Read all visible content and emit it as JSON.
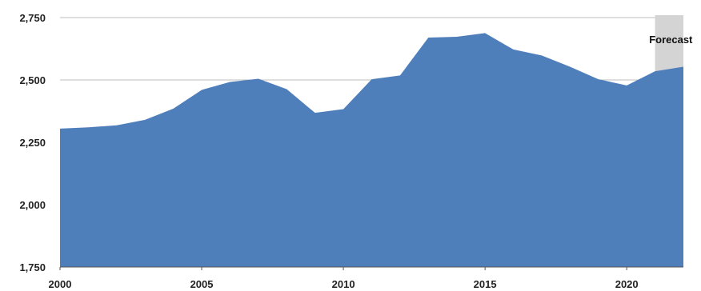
{
  "chart_data": {
    "type": "area",
    "x": [
      2000,
      2001,
      2002,
      2003,
      2004,
      2005,
      2006,
      2007,
      2008,
      2009,
      2010,
      2011,
      2012,
      2013,
      2014,
      2015,
      2016,
      2017,
      2018,
      2019,
      2020,
      2021,
      2022
    ],
    "series": [
      {
        "values": [
          2305,
          2310,
          2318,
          2340,
          2385,
          2460,
          2492,
          2505,
          2463,
          2368,
          2383,
          2503,
          2518,
          2670,
          2673,
          2688,
          2622,
          2598,
          2553,
          2503,
          2478,
          2535,
          2553
        ]
      }
    ],
    "xlim": [
      2000,
      2022
    ],
    "ylim": [
      1750,
      2750
    ],
    "xticks": [
      2000,
      2005,
      2010,
      2015,
      2020
    ],
    "yticks": [
      1750,
      2000,
      2250,
      2500,
      2750
    ],
    "xtick_labels": [
      "2000",
      "2005",
      "2010",
      "2015",
      "2020"
    ],
    "ytick_labels": [
      "1,750",
      "2,000",
      "2,250",
      "2,500",
      "2,750"
    ],
    "grid": "horizontal",
    "forecast_region": {
      "x_start": 2021,
      "x_end": 2022,
      "label": "Forecast"
    },
    "colors": {
      "area": "#4f7fbb",
      "forecast_shade": "#d4d4d4",
      "grid": "#bdbdbd",
      "axis": "#555555"
    }
  }
}
